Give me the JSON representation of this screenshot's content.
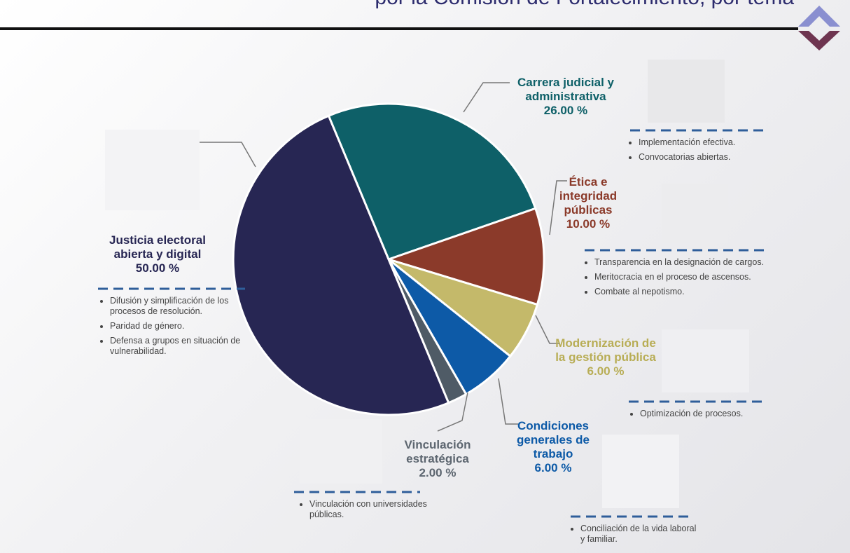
{
  "chart_data": {
    "type": "pie",
    "title": "por la Comisión de Fortalecimiento, por tema",
    "categories": [
      "Carrera judicial y administrativa",
      "Ética e integridad públicas",
      "Modernización de la gestión pública",
      "Condiciones generales de trabajo",
      "Vinculación estratégica",
      "Justicia electoral abierta y digital"
    ],
    "values": [
      26,
      10,
      6,
      6,
      2,
      50
    ],
    "value_labels": [
      "26.00 %",
      "10.00 %",
      "6.00 %",
      "6.00 %",
      "2.00 %",
      "50.00 %"
    ],
    "colors": [
      "#0e6068",
      "#8b3a2a",
      "#c4b96a",
      "#0d5aa7",
      "#4f5b66",
      "#272653"
    ],
    "bullets": [
      [
        "Implementación efectiva.",
        "Convocatorias abiertas."
      ],
      [
        "Transparencia en la designación de cargos.",
        "Meritocracia en el proceso de ascensos.",
        "Combate al nepotismo."
      ],
      [
        "Optimización de procesos."
      ],
      [
        "Conciliación de la vida laboral y familiar."
      ],
      [
        "Vinculación con universidades públicas."
      ],
      [
        "Difusión y simplificación de los procesos de resolución.",
        "Paridad de género.",
        "Defensa a grupos en situación de vulnerabilidad."
      ]
    ]
  }
}
